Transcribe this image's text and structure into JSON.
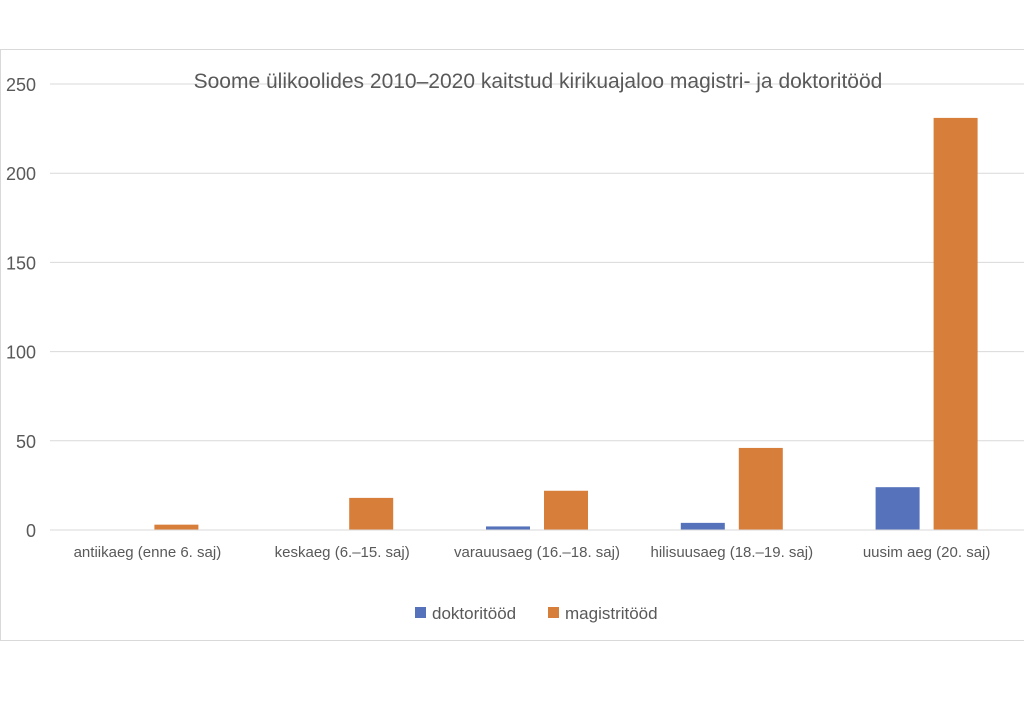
{
  "chart_data": {
    "type": "bar",
    "title": "Soome ülikoolides 2010–2020 kaitstud kirikuajaloo magistri- ja doktoritööd",
    "xlabel": "",
    "ylabel": "",
    "ylim": [
      0,
      250
    ],
    "yticks": [
      0,
      50,
      100,
      150,
      200,
      250
    ],
    "grid": true,
    "legend_position": "bottom",
    "categories": [
      "antiikaeg (enne 6. saj)",
      "keskaeg (6.–15. saj)",
      "varauusaeg (16.–18. saj)",
      "hilisuusaeg (18.–19. saj)",
      "uusim aeg (20. saj)"
    ],
    "series": [
      {
        "name": "doktoritööd",
        "color": "#5572bb",
        "values": [
          0,
          0,
          2,
          4,
          24
        ]
      },
      {
        "name": "magistritööd",
        "color": "#d77e3b",
        "values": [
          3,
          18,
          22,
          46,
          231
        ]
      }
    ]
  }
}
